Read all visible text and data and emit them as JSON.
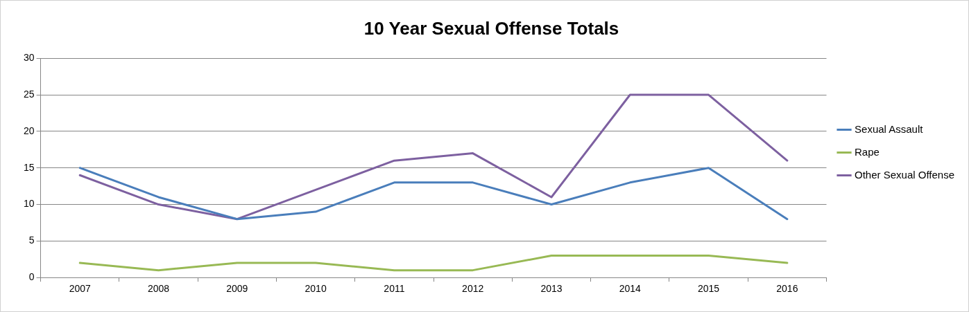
{
  "chart_data": {
    "type": "line",
    "title": "10 Year Sexual Offense Totals",
    "categories": [
      "2007",
      "2008",
      "2009",
      "2010",
      "2011",
      "2012",
      "2013",
      "2014",
      "2015",
      "2016"
    ],
    "series": [
      {
        "name": "Sexual Assault",
        "color": "#4a7ebb",
        "values": [
          15,
          11,
          8,
          9,
          13,
          13,
          10,
          13,
          15,
          8
        ]
      },
      {
        "name": "Rape",
        "color": "#98b954",
        "values": [
          2,
          1,
          2,
          2,
          1,
          1,
          3,
          3,
          3,
          2
        ]
      },
      {
        "name": "Other Sexual Offense",
        "color": "#7d60a0",
        "values": [
          14,
          10,
          8,
          12,
          16,
          17,
          11,
          25,
          25,
          16
        ]
      }
    ],
    "ylim": [
      0,
      30
    ],
    "yticks": [
      0,
      5,
      10,
      15,
      20,
      25,
      30
    ],
    "grid": "y",
    "legend": "right",
    "marker": "none",
    "line_style": "solid"
  }
}
